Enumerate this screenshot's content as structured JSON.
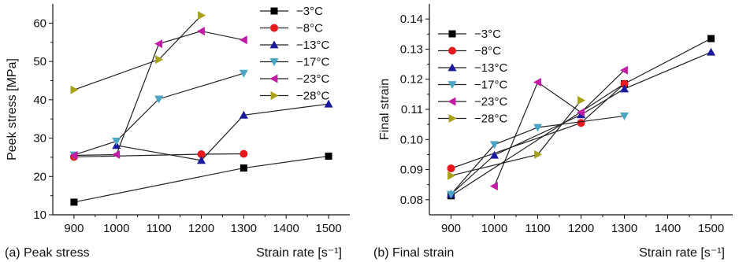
{
  "figure": {
    "caption_a": "(a) Peak stress",
    "caption_b": "(b) Final strain"
  },
  "chart_data": [
    {
      "type": "line",
      "panel": "a",
      "xlabel": "Strain rate [s⁻¹]",
      "ylabel": "Peek stress [MPa]",
      "xlim": [
        850,
        1550
      ],
      "ylim": [
        10,
        65
      ],
      "xticks": [
        900,
        1000,
        1100,
        1200,
        1300,
        1400,
        1500
      ],
      "yticks": [
        10,
        20,
        30,
        40,
        50,
        60
      ],
      "grid": false,
      "legend_position": "top-right",
      "series": [
        {
          "name": "−3°C",
          "marker": "square",
          "color": "#000000",
          "x": [
            900,
            1300,
            1500
          ],
          "y": [
            13.3,
            22.2,
            25.3
          ]
        },
        {
          "name": "−8°C",
          "marker": "circle",
          "color": "#e8191c",
          "x": [
            900,
            1200,
            1300
          ],
          "y": [
            25.1,
            25.8,
            25.9
          ]
        },
        {
          "name": "−13°C",
          "marker": "triangle-up",
          "color": "#1a1a9c",
          "x": [
            1000,
            1200,
            1300,
            1500
          ],
          "y": [
            28.1,
            24.2,
            36.0,
            38.9
          ]
        },
        {
          "name": "−17°C",
          "marker": "triangle-down",
          "color": "#4aa6c4",
          "x": [
            900,
            1000,
            1100,
            1300
          ],
          "y": [
            25.6,
            29.2,
            40.2,
            46.9
          ]
        },
        {
          "name": "−23°C",
          "marker": "triangle-left",
          "color": "#c21ca6",
          "x": [
            900,
            1000,
            1100,
            1200,
            1300
          ],
          "y": [
            25.5,
            25.7,
            54.6,
            57.9,
            55.6
          ]
        },
        {
          "name": "−28°C",
          "marker": "triangle-right",
          "color": "#a8a016",
          "x": [
            900,
            1100,
            1200
          ],
          "y": [
            42.6,
            50.5,
            62.0
          ]
        }
      ]
    },
    {
      "type": "line",
      "panel": "b",
      "xlabel": "Strain rate [s⁻¹]",
      "ylabel": "Final strain",
      "xlim": [
        850,
        1550
      ],
      "ylim": [
        0.075,
        0.145
      ],
      "xticks": [
        900,
        1000,
        1100,
        1200,
        1300,
        1400,
        1500
      ],
      "yticks": [
        0.08,
        0.09,
        0.1,
        0.11,
        0.12,
        0.13,
        0.14
      ],
      "grid": false,
      "legend_position": "top-left",
      "series": [
        {
          "name": "−3°C",
          "marker": "square",
          "color": "#000000",
          "x": [
            900,
            1300,
            1500
          ],
          "y": [
            0.0813,
            0.1185,
            0.1335
          ]
        },
        {
          "name": "−8°C",
          "marker": "circle",
          "color": "#e8191c",
          "x": [
            900,
            1200,
            1300
          ],
          "y": [
            0.0904,
            0.1055,
            0.1185
          ]
        },
        {
          "name": "−13°C",
          "marker": "triangle-up",
          "color": "#1a1a9c",
          "x": [
            900,
            1000,
            1200,
            1300,
            1500
          ],
          "y": [
            0.0818,
            0.0948,
            0.1082,
            0.1168,
            0.129
          ]
        },
        {
          "name": "−17°C",
          "marker": "triangle-down",
          "color": "#4aa6c4",
          "x": [
            900,
            1000,
            1100,
            1300
          ],
          "y": [
            0.0818,
            0.0983,
            0.104,
            0.1078
          ]
        },
        {
          "name": "−23°C",
          "marker": "triangle-left",
          "color": "#c21ca6",
          "x": [
            1000,
            1100,
            1200,
            1300
          ],
          "y": [
            0.0845,
            0.119,
            0.109,
            0.123
          ]
        },
        {
          "name": "−28°C",
          "marker": "triangle-right",
          "color": "#a8a016",
          "x": [
            900,
            1100,
            1200
          ],
          "y": [
            0.088,
            0.095,
            0.113
          ]
        }
      ]
    }
  ]
}
